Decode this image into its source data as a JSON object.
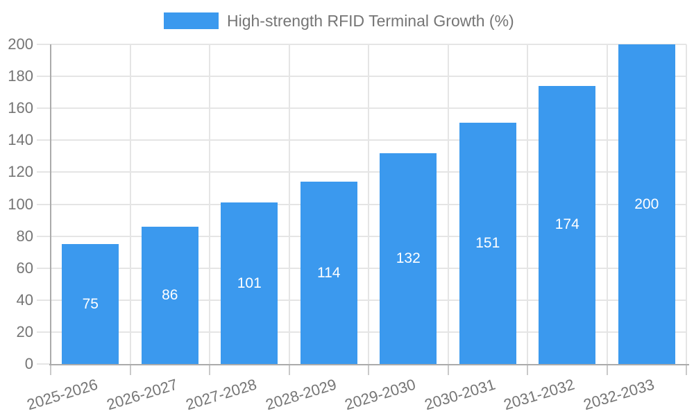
{
  "legend": {
    "label": "High-strength RFID Terminal Growth (%)"
  },
  "chart_data": {
    "type": "bar",
    "title": "High-strength RFID Terminal Growth (%)",
    "categories": [
      "2025-2026",
      "2026-2027",
      "2027-2028",
      "2028-2029",
      "2029-2030",
      "2030-2031",
      "2031-2032",
      "2032-2033"
    ],
    "values": [
      75,
      86,
      101,
      114,
      132,
      151,
      174,
      200
    ],
    "value_labels": [
      "75",
      "86",
      "101",
      "114",
      "132",
      "151",
      "174",
      "200"
    ],
    "ytick_labels": [
      "0",
      "20",
      "40",
      "60",
      "80",
      "100",
      "120",
      "140",
      "160",
      "180",
      "200"
    ],
    "yticks": [
      0,
      20,
      40,
      60,
      80,
      100,
      120,
      140,
      160,
      180,
      200
    ],
    "ylim": [
      0,
      200
    ],
    "xlabel": "",
    "ylabel": "",
    "grid": true,
    "legend_position": "top",
    "colors": {
      "bar": "#3B99EE",
      "value_label": "#FFFFFF",
      "axis": "#ABABAB",
      "grid": "#E5E5E5",
      "xtick": "#C9C9C9",
      "text": "#757575"
    }
  }
}
